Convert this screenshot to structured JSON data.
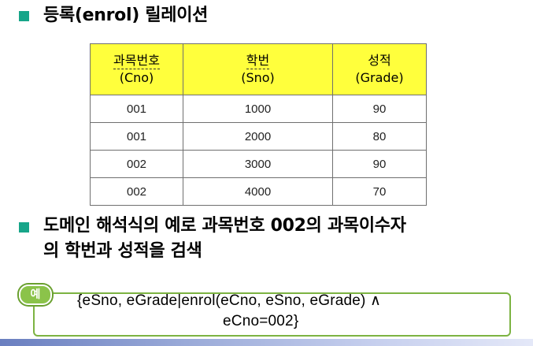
{
  "heading1": "등록(enrol) 릴레이션",
  "table": {
    "headers": [
      {
        "line1": "과목번호",
        "line2": "(Cno)"
      },
      {
        "line1": "학번",
        "line2": "(Sno)"
      },
      {
        "line1": "성적",
        "line2": "(Grade)"
      }
    ],
    "rows": [
      {
        "cno": "001",
        "sno": "1000",
        "grade": "90"
      },
      {
        "cno": "001",
        "sno": "2000",
        "grade": "80"
      },
      {
        "cno": "002",
        "sno": "3000",
        "grade": "90"
      },
      {
        "cno": "002",
        "sno": "4000",
        "grade": "70"
      }
    ]
  },
  "heading2": {
    "line1": "도메인 해석식의 예로 과목번호 002의 과목이수자",
    "line2": "의 학번과 성적을 검색"
  },
  "example": {
    "badge": "예",
    "line1": "{eSno, eGrade|enrol(eCno, eSno, eGrade) ∧",
    "line2": "eCno=002}"
  },
  "colors": {
    "bullet": "#17a589",
    "header_fill": "#ffff3c",
    "example_border": "#7cb342",
    "badge_fill": "#8bc34a"
  }
}
